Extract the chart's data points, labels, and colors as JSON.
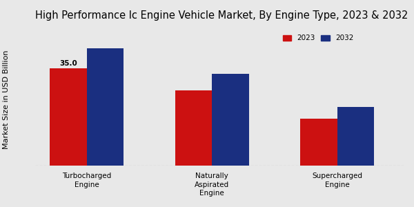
{
  "title": "High Performance Ic Engine Vehicle Market, By Engine Type, 2023 & 2032",
  "ylabel": "Market Size in USD Billion",
  "categories": [
    "Turbocharged\nEngine",
    "Naturally\nAspirated\nEngine",
    "Supercharged\nEngine"
  ],
  "values_2023": [
    35.0,
    27.0,
    17.0
  ],
  "values_2032": [
    42.0,
    33.0,
    21.0
  ],
  "color_2023": "#cc1111",
  "color_2032": "#1a2f80",
  "bar_annotation": "35.0",
  "background_color": "#e8e8e8",
  "ylim": [
    0,
    50
  ],
  "legend_labels": [
    "2023",
    "2032"
  ],
  "title_fontsize": 10.5,
  "axis_label_fontsize": 8,
  "tick_fontsize": 7.5,
  "bar_width": 0.25,
  "group_positions": [
    0.25,
    1.1,
    1.95
  ]
}
